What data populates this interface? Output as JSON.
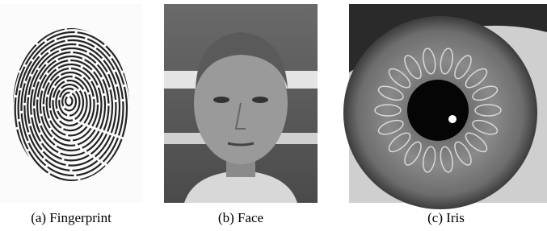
{
  "figure": {
    "subfigures": [
      {
        "caption": "(a) Fingerprint"
      },
      {
        "caption": "(b) Face"
      },
      {
        "caption": "(c) Iris"
      }
    ]
  }
}
